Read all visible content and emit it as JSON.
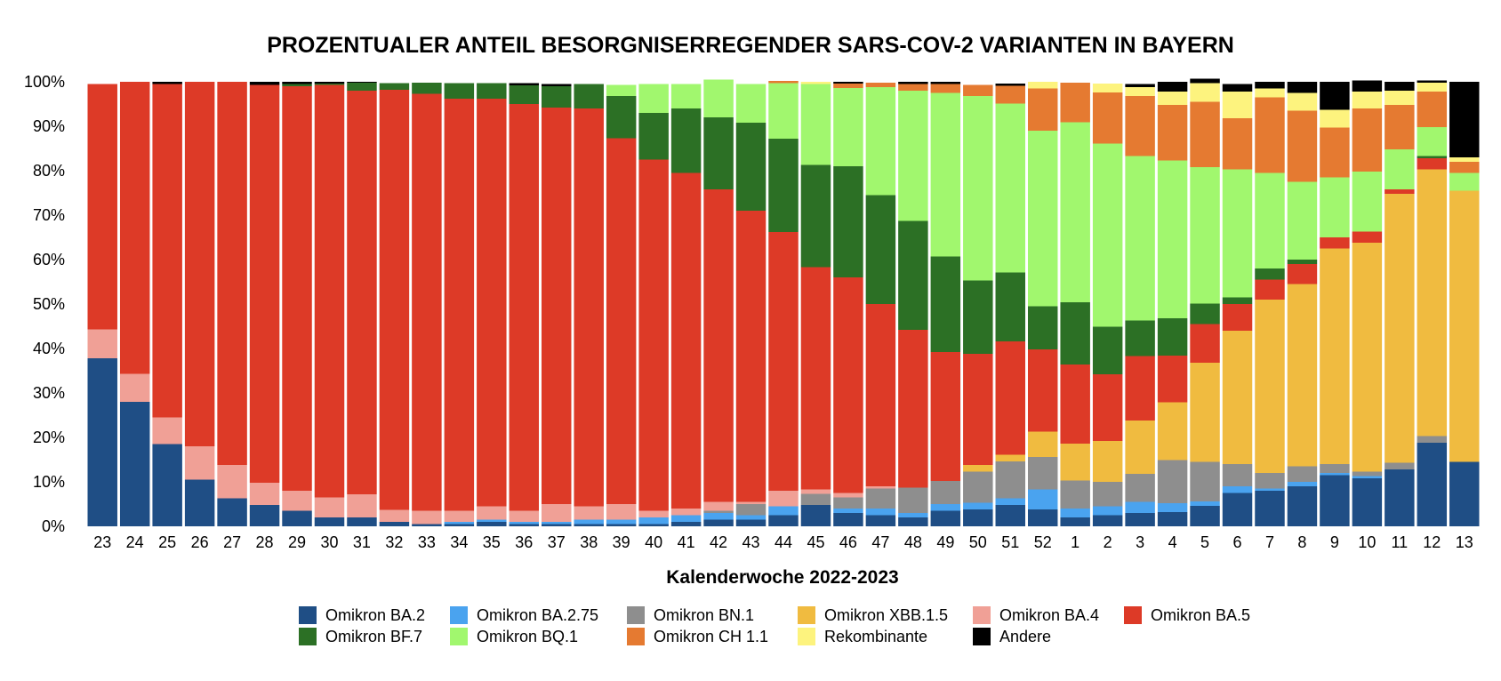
{
  "chart_data": {
    "type": "bar",
    "stacked": true,
    "title": "PROZENTUALER ANTEIL BESORGNISERREGENDER SARS-COV-2 VARIANTEN IN BAYERN",
    "xlabel": "Kalenderwoche 2022-2023",
    "ylabel": "",
    "ylim": [
      0,
      100
    ],
    "yticks": [
      "0%",
      "10%",
      "20%",
      "30%",
      "40%",
      "50%",
      "60%",
      "70%",
      "80%",
      "90%",
      "100%"
    ],
    "legend_position": "bottom",
    "categories": [
      "23",
      "24",
      "25",
      "26",
      "27",
      "28",
      "29",
      "30",
      "31",
      "32",
      "33",
      "34",
      "35",
      "36",
      "37",
      "38",
      "39",
      "40",
      "41",
      "42",
      "43",
      "44",
      "45",
      "46",
      "47",
      "48",
      "49",
      "50",
      "51",
      "52",
      "1",
      "2",
      "3",
      "4",
      "5",
      "6",
      "7",
      "8",
      "9",
      "10",
      "11",
      "12",
      "13"
    ],
    "series": [
      {
        "name": "Omikron BA.2",
        "color": "#1f4e85",
        "values": [
          37.8,
          28,
          18.5,
          10.5,
          6.3,
          4.8,
          3.5,
          2,
          2,
          1,
          0.5,
          0.5,
          1,
          0.5,
          0.5,
          0.5,
          0.5,
          0.5,
          1,
          1.5,
          1.5,
          2.5,
          4.8,
          3,
          2.5,
          2,
          3.5,
          3.8,
          4.8,
          3.8,
          2,
          2.5,
          3,
          3.2,
          4.6,
          7.5,
          8,
          9,
          11.5,
          10.8,
          12.8,
          18.8,
          14.5
        ]
      },
      {
        "name": "Omikron BA.2.75",
        "color": "#4aa3ef",
        "values": [
          0,
          0,
          0,
          0,
          0,
          0,
          0,
          0,
          0,
          0,
          0,
          0.5,
          0.5,
          0.5,
          0.5,
          1,
          1,
          1.5,
          1.5,
          1.5,
          1,
          2,
          0,
          1,
          1.5,
          1,
          1.5,
          1.5,
          1.5,
          4.5,
          2,
          2,
          2.5,
          2,
          1,
          1.5,
          0.5,
          1,
          0.5,
          0.5,
          0,
          0,
          0
        ]
      },
      {
        "name": "Omikron BN.1",
        "color": "#8e8e8e",
        "values": [
          0,
          0,
          0,
          0,
          0,
          0,
          0,
          0,
          0,
          0,
          0,
          0,
          0,
          0,
          0,
          0,
          0,
          0,
          0,
          0.5,
          2.5,
          0,
          2.5,
          2.5,
          4.5,
          5.7,
          5.2,
          7,
          8.3,
          7.3,
          6.3,
          5.5,
          6.3,
          9.7,
          8.9,
          5,
          3.5,
          3.5,
          2,
          1,
          1.5,
          1.5,
          0
        ]
      },
      {
        "name": "Omikron XBB.1.5",
        "color": "#f0bb40",
        "values": [
          0,
          0,
          0,
          0,
          0,
          0,
          0,
          0,
          0,
          0,
          0,
          0,
          0,
          0,
          0,
          0,
          0,
          0,
          0,
          0,
          0,
          0,
          0,
          0,
          0,
          0,
          0,
          1.5,
          1.5,
          5.7,
          8.3,
          9.2,
          12,
          13,
          22.3,
          30,
          39,
          41,
          48.5,
          51.5,
          60.5,
          60,
          61
        ]
      },
      {
        "name": "Omikron BA.4",
        "color": "#f0a096",
        "values": [
          6.5,
          6.3,
          6,
          7.5,
          7.5,
          5,
          4.5,
          4.5,
          5.2,
          2.7,
          3,
          2.5,
          3,
          2.5,
          4,
          3,
          3.5,
          1.5,
          1.5,
          2,
          0.5,
          3.5,
          1,
          1,
          0.5,
          0,
          0,
          0,
          0,
          0,
          0,
          0,
          0,
          0,
          0,
          0,
          0,
          0,
          0,
          0,
          0,
          0,
          0
        ]
      },
      {
        "name": "Omikron BA.5",
        "color": "#dd3a27",
        "values": [
          55.2,
          65.7,
          75,
          82,
          86.2,
          89.5,
          91,
          92.8,
          90.8,
          94.5,
          93.8,
          92.7,
          91.7,
          91.5,
          89.2,
          89.5,
          82.3,
          79,
          75.5,
          70.3,
          65.5,
          58.2,
          50,
          48.5,
          41,
          35.5,
          29,
          25,
          25.5,
          18.5,
          17.8,
          15,
          14.5,
          10.5,
          8.7,
          6,
          4.5,
          4.5,
          2.5,
          2.5,
          1,
          2.5,
          0
        ]
      },
      {
        "name": "Omikron BF.7",
        "color": "#2c7025",
        "values": [
          0,
          0,
          0,
          0,
          0,
          0,
          0.5,
          0.3,
          1.8,
          1.5,
          2.5,
          3.5,
          3.5,
          4.2,
          4.8,
          5.5,
          9.5,
          10.5,
          14.5,
          16.2,
          19.8,
          21,
          23,
          25,
          24.5,
          24.5,
          21.5,
          16.5,
          15.5,
          9.7,
          14,
          10.7,
          8,
          8.4,
          4.6,
          1.5,
          2.5,
          1,
          0,
          0,
          0,
          0.5,
          0
        ]
      },
      {
        "name": "Omikron BQ.1",
        "color": "#a1f76e",
        "values": [
          0,
          0,
          0,
          0,
          0,
          0,
          0,
          0,
          0,
          0,
          0,
          0,
          0,
          0,
          0,
          0,
          2.5,
          6.5,
          5.5,
          8.5,
          8.7,
          12.5,
          18.2,
          17.6,
          24.3,
          29.3,
          36.8,
          41.5,
          38,
          39.5,
          40.5,
          41.2,
          37,
          35.5,
          30.7,
          28.8,
          21.5,
          17.5,
          13.5,
          13.5,
          9,
          6.5,
          4
        ]
      },
      {
        "name": "Omikron CH 1.1",
        "color": "#e57a31",
        "values": [
          0,
          0,
          0,
          0,
          0,
          0,
          0,
          0,
          0,
          0,
          0,
          0,
          0,
          0,
          0,
          0,
          0,
          0,
          0,
          0,
          0,
          0.5,
          0,
          1,
          1,
          1.5,
          2,
          2.5,
          4,
          9.5,
          8.9,
          11.5,
          13.5,
          12.5,
          14.7,
          11.5,
          17,
          16,
          11.2,
          14.2,
          10,
          8,
          2.5
        ]
      },
      {
        "name": "Rekombinante",
        "color": "#fdf37e",
        "values": [
          0,
          0,
          0,
          0,
          0,
          0,
          0,
          0,
          0,
          0,
          0,
          0,
          0,
          0,
          0,
          0,
          0,
          0,
          0,
          0,
          0,
          0,
          0.5,
          0,
          0,
          0,
          0,
          0,
          0,
          1.5,
          0,
          2,
          2,
          3,
          4.2,
          6,
          2,
          4,
          4,
          3.8,
          3.2,
          2,
          1
        ]
      },
      {
        "name": "Andere",
        "color": "#000000",
        "values": [
          0,
          0,
          0.5,
          0,
          0,
          0.7,
          0.5,
          0.4,
          0.2,
          0,
          0,
          0,
          0,
          0.5,
          0.5,
          0,
          0,
          0,
          0,
          0,
          0,
          0,
          0,
          0.4,
          0,
          0.5,
          0.5,
          0,
          0.5,
          0,
          0,
          0,
          0.7,
          2.2,
          1,
          1.7,
          1.5,
          2.5,
          6.3,
          2.5,
          2,
          0.5,
          17
        ]
      }
    ]
  }
}
